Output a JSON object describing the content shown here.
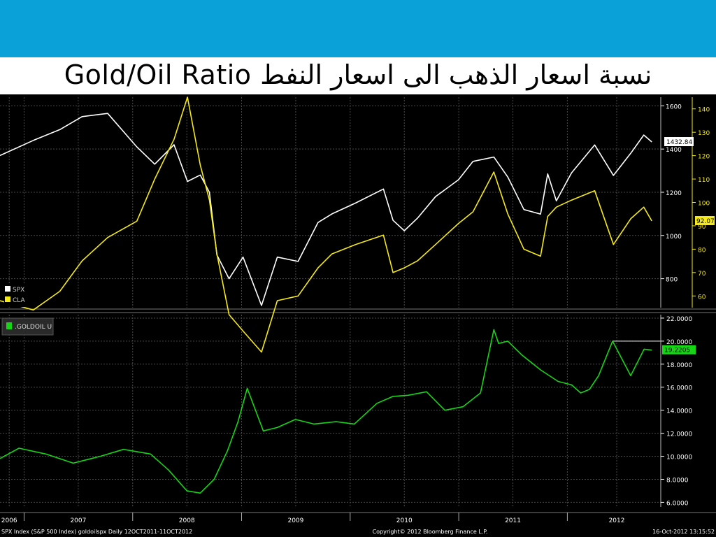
{
  "slide": {
    "title": "Gold/Oil Ratio نسبة اسعار الذهب الى اسعار النفط",
    "banner_color": "#0aa0d8"
  },
  "chart_data": [
    {
      "type": "line",
      "panel": "upper",
      "x": [
        "2006-10-12",
        "2007-02-01",
        "2007-05-01",
        "2007-07-15",
        "2007-10-09",
        "2008-01-15",
        "2008-03-15",
        "2008-05-19",
        "2008-07-03",
        "2008-08-15",
        "2008-09-15",
        "2008-10-10",
        "2008-11-20",
        "2009-01-06",
        "2009-03-09",
        "2009-05-01",
        "2009-07-10",
        "2009-09-15",
        "2009-11-01",
        "2010-01-19",
        "2010-04-23",
        "2010-05-25",
        "2010-07-02",
        "2010-08-15",
        "2010-10-15",
        "2010-12-31",
        "2011-02-18",
        "2011-04-29",
        "2011-06-15",
        "2011-08-08",
        "2011-10-03",
        "2011-10-27",
        "2011-11-25",
        "2012-01-15",
        "2012-04-02",
        "2012-06-04",
        "2012-08-01",
        "2012-09-14",
        "2012-10-11"
      ],
      "series": [
        {
          "name": "SPX",
          "axis": "left",
          "color": "#ffffff",
          "values": [
            1370,
            1440,
            1490,
            1550,
            1565,
            1410,
            1330,
            1420,
            1250,
            1280,
            1200,
            910,
            800,
            900,
            676,
            900,
            880,
            1060,
            1100,
            1150,
            1215,
            1070,
            1022,
            1080,
            1180,
            1258,
            1343,
            1363,
            1270,
            1120,
            1099,
            1285,
            1160,
            1290,
            1419,
            1278,
            1380,
            1465,
            1432.84
          ]
        },
        {
          "name": "CLA",
          "axis": "right",
          "color": "#f5ea14",
          "values": [
            58,
            54,
            62,
            75,
            85,
            92,
            110,
            127,
            145,
            116,
            101,
            78,
            52,
            45,
            36,
            58,
            60,
            72,
            78,
            82,
            86,
            70,
            72,
            75,
            82,
            91,
            96,
            113,
            95,
            80,
            77,
            94,
            98,
            101,
            105,
            82,
            93,
            98,
            92.07
          ]
        }
      ],
      "left_axis": {
        "ticks": [
          800,
          1000,
          1200,
          1400,
          1600
        ],
        "ylim": [
          666,
          1640
        ],
        "tick_labels": [
          "800",
          "1000",
          "1200",
          "1400",
          "1600"
        ]
      },
      "right_axis": {
        "ticks": [
          60,
          70,
          80,
          90,
          100,
          110,
          120,
          130,
          140
        ],
        "ylim": [
          55,
          145
        ],
        "tick_labels": [
          "60",
          "70",
          "80",
          "90",
          "100",
          "110",
          "120",
          "130",
          "140"
        ]
      },
      "last_value_labels": [
        "1432.84",
        "92.07"
      ],
      "legend": {
        "position": "bottom-left",
        "entries": [
          "SPX",
          "CLA"
        ]
      }
    },
    {
      "type": "line",
      "panel": "lower",
      "x": [
        "2006-10-12",
        "2006-12-15",
        "2007-03-15",
        "2007-06-15",
        "2007-09-15",
        "2007-12-01",
        "2008-03-01",
        "2008-05-01",
        "2008-07-01",
        "2008-08-15",
        "2008-10-01",
        "2008-11-15",
        "2008-12-20",
        "2009-01-20",
        "2009-03-15",
        "2009-05-01",
        "2009-07-01",
        "2009-09-01",
        "2009-11-15",
        "2010-01-15",
        "2010-04-01",
        "2010-05-25",
        "2010-07-15",
        "2010-09-15",
        "2010-11-15",
        "2011-01-15",
        "2011-03-15",
        "2011-04-29",
        "2011-05-15",
        "2011-06-15",
        "2011-08-01",
        "2011-10-03",
        "2011-12-01",
        "2012-01-15",
        "2012-02-15",
        "2012-03-15",
        "2012-04-15",
        "2012-06-01",
        "2012-08-01",
        "2012-09-15",
        "2012-10-11"
      ],
      "series": [
        {
          "name": ".GOLDOIL U",
          "axis": "right",
          "color": "#17d417",
          "values": [
            9.8,
            10.7,
            10.2,
            9.4,
            10.0,
            10.6,
            10.2,
            8.8,
            7.0,
            6.8,
            8.0,
            10.5,
            13.0,
            15.9,
            12.2,
            12.5,
            13.2,
            12.8,
            13.0,
            12.8,
            14.6,
            15.2,
            15.3,
            15.6,
            14.0,
            14.3,
            15.5,
            21.0,
            19.8,
            20.0,
            18.8,
            17.5,
            16.5,
            16.2,
            15.5,
            15.8,
            17.0,
            20.0,
            17.0,
            19.3,
            19.2205
          ]
        }
      ],
      "right_axis": {
        "ticks": [
          6,
          8,
          10,
          12,
          14,
          16,
          18,
          20,
          22
        ],
        "ylim": [
          5.6,
          22.3
        ],
        "tick_labels": [
          "6.0000",
          "8.0000",
          "10.0000",
          "12.0000",
          "14.0000",
          "16.0000",
          "18.0000",
          "20.0000",
          "22.0000"
        ]
      },
      "last_value_labels": [
        "19.2205"
      ],
      "legend": {
        "position": "top-left",
        "entries": [
          ".GOLDOIL U"
        ]
      },
      "reference_line": {
        "value": 20.0
      }
    }
  ],
  "x_axis": {
    "range": [
      "2006-10-12",
      "2012-11-10"
    ],
    "year_labels": [
      {
        "label": "2006",
        "date": "2006-11-12"
      },
      {
        "label": "2007",
        "date": "2007-07-02"
      },
      {
        "label": "2008",
        "date": "2008-07-01"
      },
      {
        "label": "2009",
        "date": "2009-07-02"
      },
      {
        "label": "2010",
        "date": "2010-07-02"
      },
      {
        "label": "2011",
        "date": "2011-07-02"
      },
      {
        "label": "2012",
        "date": "2012-06-15"
      }
    ],
    "year_boundaries": [
      "2007-01-01",
      "2008-01-01",
      "2009-01-01",
      "2010-01-01",
      "2011-01-01",
      "2012-01-01"
    ]
  },
  "footer": {
    "left": "SPX Index (S&P 500 Index) goldoilspx  Daily 12OCT2011-11OCT2012",
    "center": "Copyright© 2012 Bloomberg Finance L.P.",
    "right": "16-Oct-2012 13:15:52"
  },
  "colors": {
    "background": "#000000",
    "grid": "#4a4a4a",
    "axis_text": "#ffffff",
    "right_axis_upper": "#f5ea14",
    "legend_box": "#2a2a2a"
  }
}
